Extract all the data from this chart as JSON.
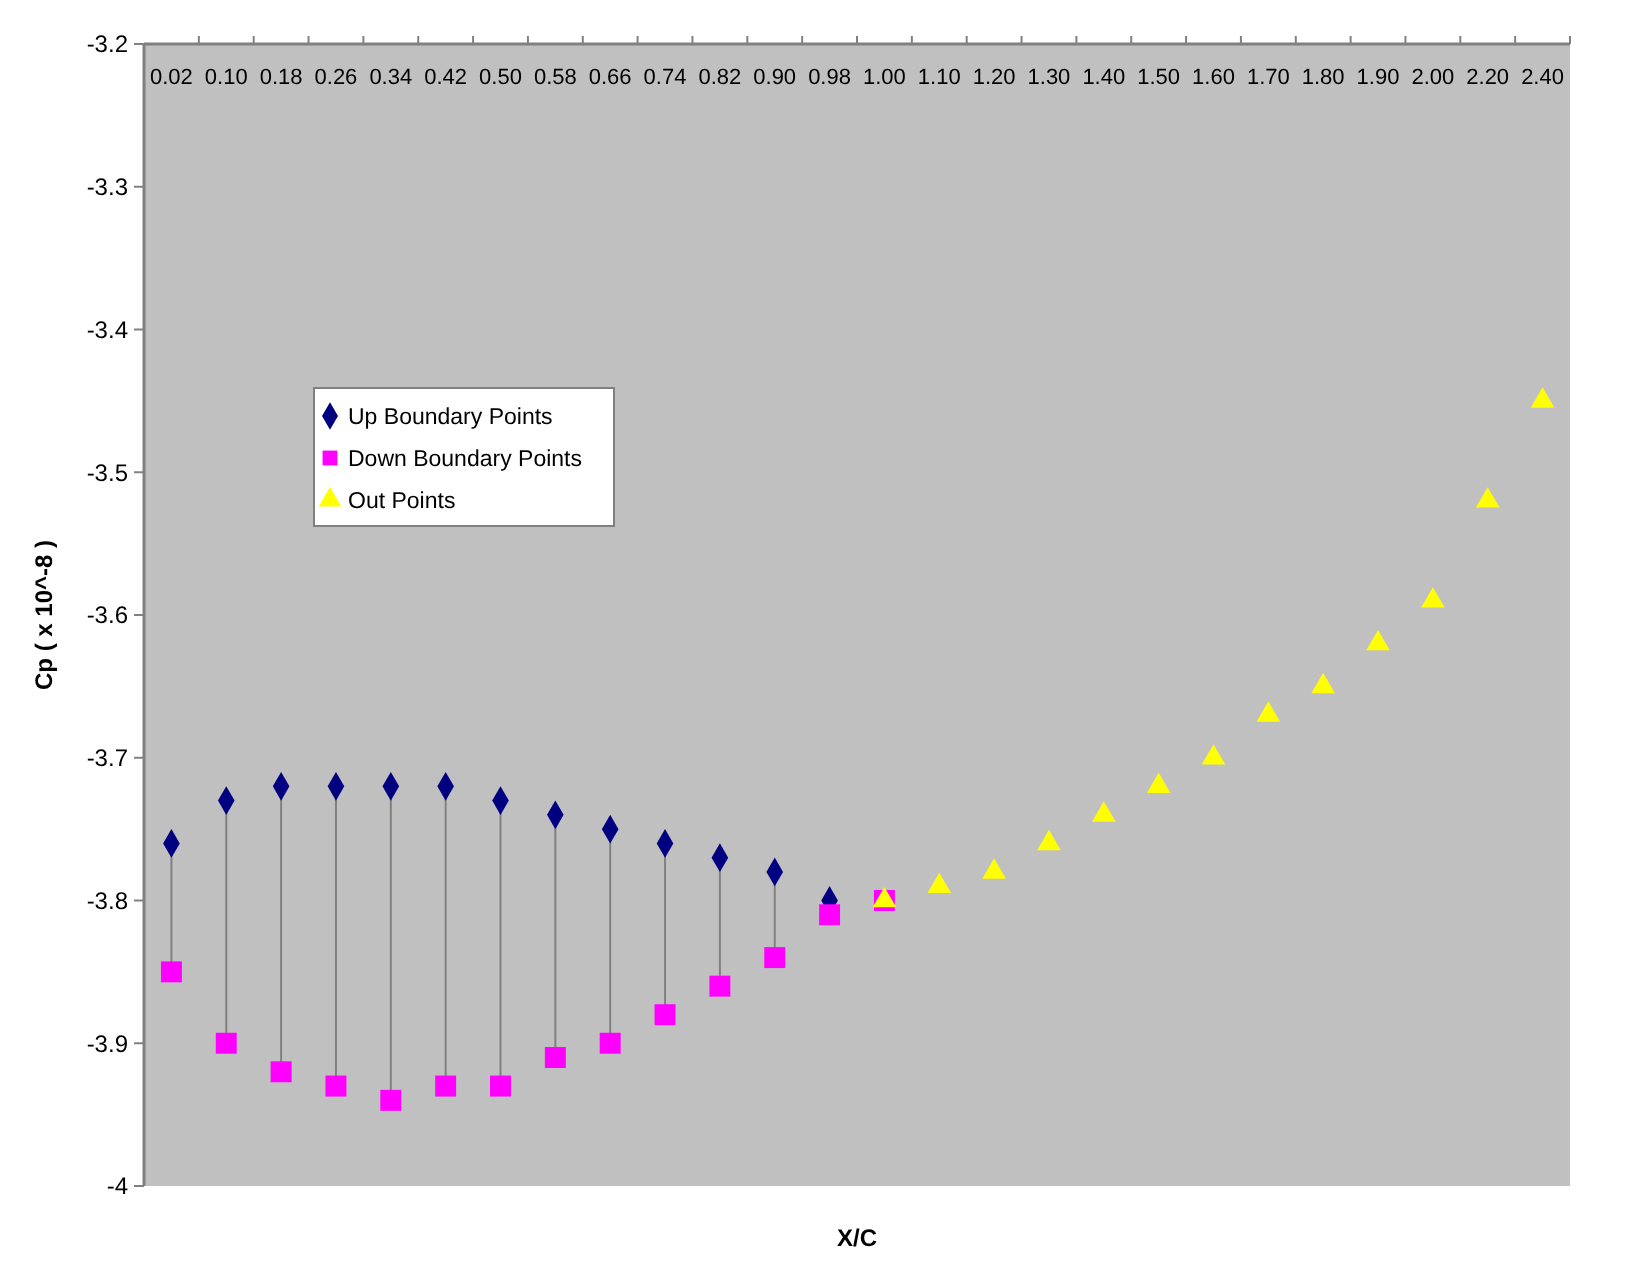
{
  "chart_data": {
    "type": "scatter",
    "xlabel": "X/C",
    "ylabel": "Cp ( x 10^-8 )",
    "categories": [
      "0.02",
      "0.10",
      "0.18",
      "0.26",
      "0.34",
      "0.42",
      "0.50",
      "0.58",
      "0.66",
      "0.74",
      "0.82",
      "0.90",
      "0.98",
      "1.00",
      "1.10",
      "1.20",
      "1.30",
      "1.40",
      "1.50",
      "1.60",
      "1.70",
      "1.80",
      "1.90",
      "2.00",
      "2.20",
      "2.40"
    ],
    "ylim": [
      -4,
      -3.2
    ],
    "yticks": [
      -4,
      -3.9,
      -3.8,
      -3.7,
      -3.6,
      -3.5,
      -3.4,
      -3.3,
      -3.2
    ],
    "legend": "left",
    "grid": false,
    "series": [
      {
        "name": "Up Boundary Points",
        "color": "#000080",
        "marker": "diamond",
        "values": [
          -3.76,
          -3.73,
          -3.72,
          -3.72,
          -3.72,
          -3.72,
          -3.73,
          -3.74,
          -3.75,
          -3.76,
          -3.77,
          -3.78,
          -3.8,
          null,
          null,
          null,
          null,
          null,
          null,
          null,
          null,
          null,
          null,
          null,
          null,
          null
        ]
      },
      {
        "name": "Down Boundary Points",
        "color": "#ff00ff",
        "marker": "square",
        "values": [
          -3.85,
          -3.9,
          -3.92,
          -3.93,
          -3.94,
          -3.93,
          -3.93,
          -3.91,
          -3.9,
          -3.88,
          -3.86,
          -3.84,
          -3.81,
          -3.8,
          null,
          null,
          null,
          null,
          null,
          null,
          null,
          null,
          null,
          null,
          null,
          null
        ]
      },
      {
        "name": "Out Points",
        "color": "#ffff00",
        "marker": "triangle",
        "values": [
          null,
          null,
          null,
          null,
          null,
          null,
          null,
          null,
          null,
          null,
          null,
          null,
          null,
          -3.8,
          -3.79,
          -3.78,
          -3.76,
          -3.74,
          -3.72,
          -3.7,
          -3.67,
          -3.65,
          -3.62,
          -3.59,
          -3.52,
          -3.45
        ]
      }
    ]
  }
}
